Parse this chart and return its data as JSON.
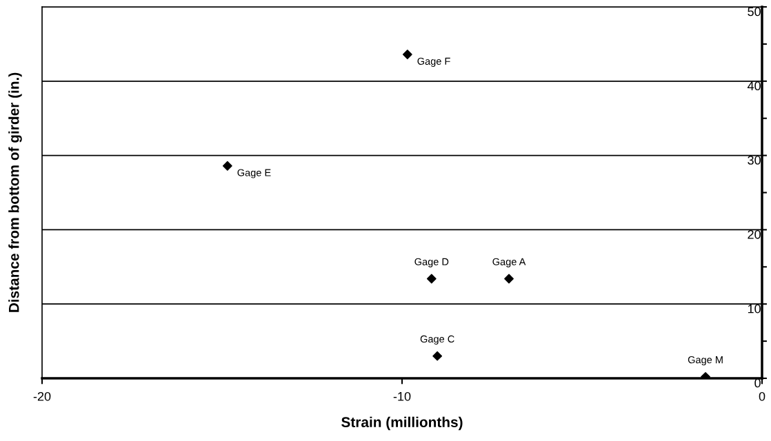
{
  "chart_data": {
    "type": "scatter",
    "xlabel": "Strain (millionths)",
    "ylabel": "Distance from bottom of girder (in.)",
    "x": [
      -9.85,
      -14.85,
      -9.18,
      -7.03,
      -9.02,
      -1.57
    ],
    "series": [
      {
        "color": "#000000",
        "values": [
          43.6,
          28.6,
          13.4,
          13.4,
          3.0,
          0.2
        ]
      }
    ],
    "xlim": [
      -20,
      0
    ],
    "xticks": [
      -20,
      -10,
      0
    ],
    "ylim": [
      0,
      50
    ],
    "yticks": [
      0,
      {
        "value": 5,
        "label": null
      },
      10,
      {
        "value": 15,
        "label": null
      },
      20,
      {
        "value": 25,
        "label": null
      },
      30,
      {
        "value": 35,
        "label": null
      },
      40,
      {
        "value": 45,
        "label": null
      },
      50
    ],
    "grid": "y",
    "marker": "diamond",
    "legend": false,
    "annotations": [
      {
        "text": "Gage F",
        "x": -9.85,
        "y": 43.6
      },
      {
        "text": "Gage E",
        "x": -14.85,
        "y": 28.6
      },
      {
        "text": "Gage D",
        "x": -9.18,
        "y": 13.4
      },
      {
        "text": "Gage A",
        "x": -7.03,
        "y": 13.4
      },
      {
        "text": "Gage C",
        "x": -9.02,
        "y": 3.0
      },
      {
        "text": "Gage M",
        "x": -1.57,
        "y": 0.2
      }
    ]
  }
}
